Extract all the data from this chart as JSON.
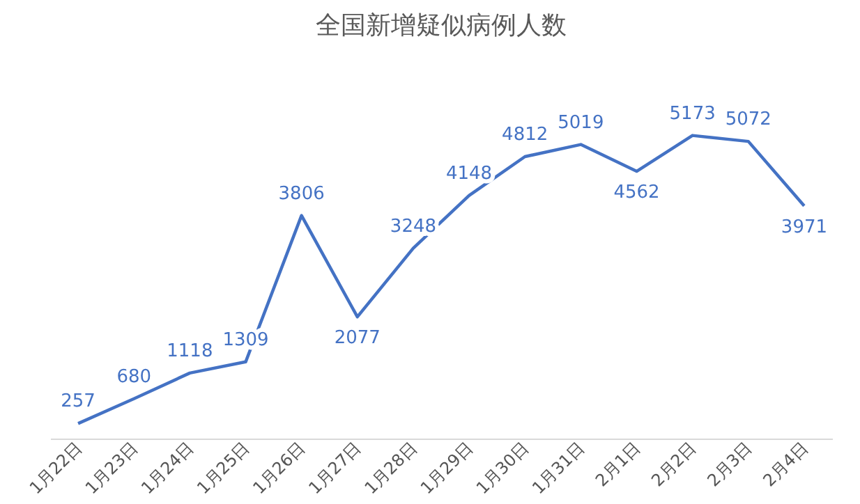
{
  "chart_data": {
    "type": "line",
    "title": "全国新增疑似病例人数",
    "categories": [
      "1月22日",
      "1月23日",
      "1月24日",
      "1月25日",
      "1月26日",
      "1月27日",
      "1月28日",
      "1月29日",
      "1月30日",
      "1月31日",
      "2月1日",
      "2月2日",
      "2月3日",
      "2月4日"
    ],
    "series": [
      {
        "color": "#4472c4",
        "values": [
          257,
          680,
          1118,
          1309,
          3806,
          2077,
          3248,
          4148,
          4812,
          5019,
          4562,
          5173,
          5072,
          3971
        ]
      }
    ],
    "data_labels": true,
    "marker": "none",
    "line_style": "solid"
  }
}
